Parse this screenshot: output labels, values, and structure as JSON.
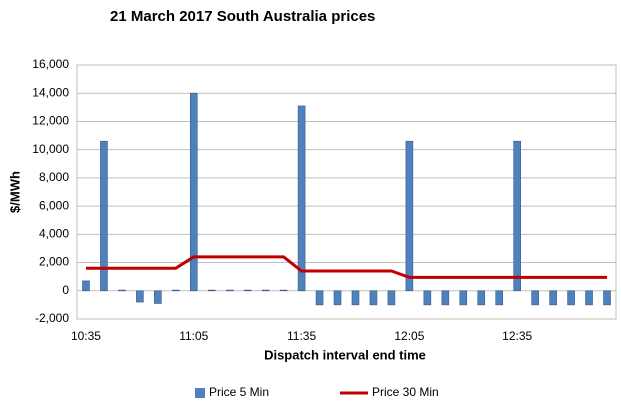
{
  "chart_data": {
    "type": "bar",
    "title": "21 March 2017 South Australia prices",
    "y_label": "$/MWh",
    "x_label": "Dispatch interval end time",
    "categories": [
      "10:35",
      null,
      null,
      null,
      null,
      null,
      "11:05",
      null,
      null,
      null,
      null,
      null,
      "11:35",
      null,
      null,
      null,
      null,
      null,
      "12:05",
      null,
      null,
      null,
      null,
      null,
      "12:35",
      null,
      null,
      null,
      null,
      null
    ],
    "series": [
      {
        "name": "Price 5 Min",
        "type": "bar",
        "color": "#4f81bd",
        "values": [
          700,
          10600,
          50,
          -800,
          -900,
          50,
          14000,
          50,
          50,
          50,
          50,
          50,
          13100,
          -1000,
          -1000,
          -1000,
          -1000,
          -1000,
          10600,
          -1000,
          -1000,
          -1000,
          -1000,
          -1000,
          10600,
          -1000,
          -1000,
          -1000,
          -1000,
          -1000
        ]
      },
      {
        "name": "Price 30 Min",
        "type": "line",
        "color": "#c00000",
        "values": [
          1600,
          1600,
          1600,
          1600,
          1600,
          1600,
          2400,
          2400,
          2400,
          2400,
          2400,
          2400,
          1400,
          1400,
          1400,
          1400,
          1400,
          1400,
          950,
          950,
          950,
          950,
          950,
          950,
          950,
          950,
          950,
          950,
          950,
          950
        ]
      }
    ],
    "ylim": [
      -2000,
      16000
    ],
    "yticks": [
      {
        "value": -2000,
        "label": "-2,000"
      },
      0,
      {
        "value": 2000,
        "label": "2,000"
      },
      {
        "value": 4000,
        "label": "4,000"
      },
      {
        "value": 6000,
        "label": "6,000"
      },
      {
        "value": 8000,
        "label": "8,000"
      },
      {
        "value": 10000,
        "label": "10,000"
      },
      {
        "value": 12000,
        "label": "12,000"
      },
      {
        "value": 14000,
        "label": "14,000"
      },
      {
        "value": 16000,
        "label": "16,000"
      }
    ],
    "grid": true,
    "legend": "bottom"
  }
}
